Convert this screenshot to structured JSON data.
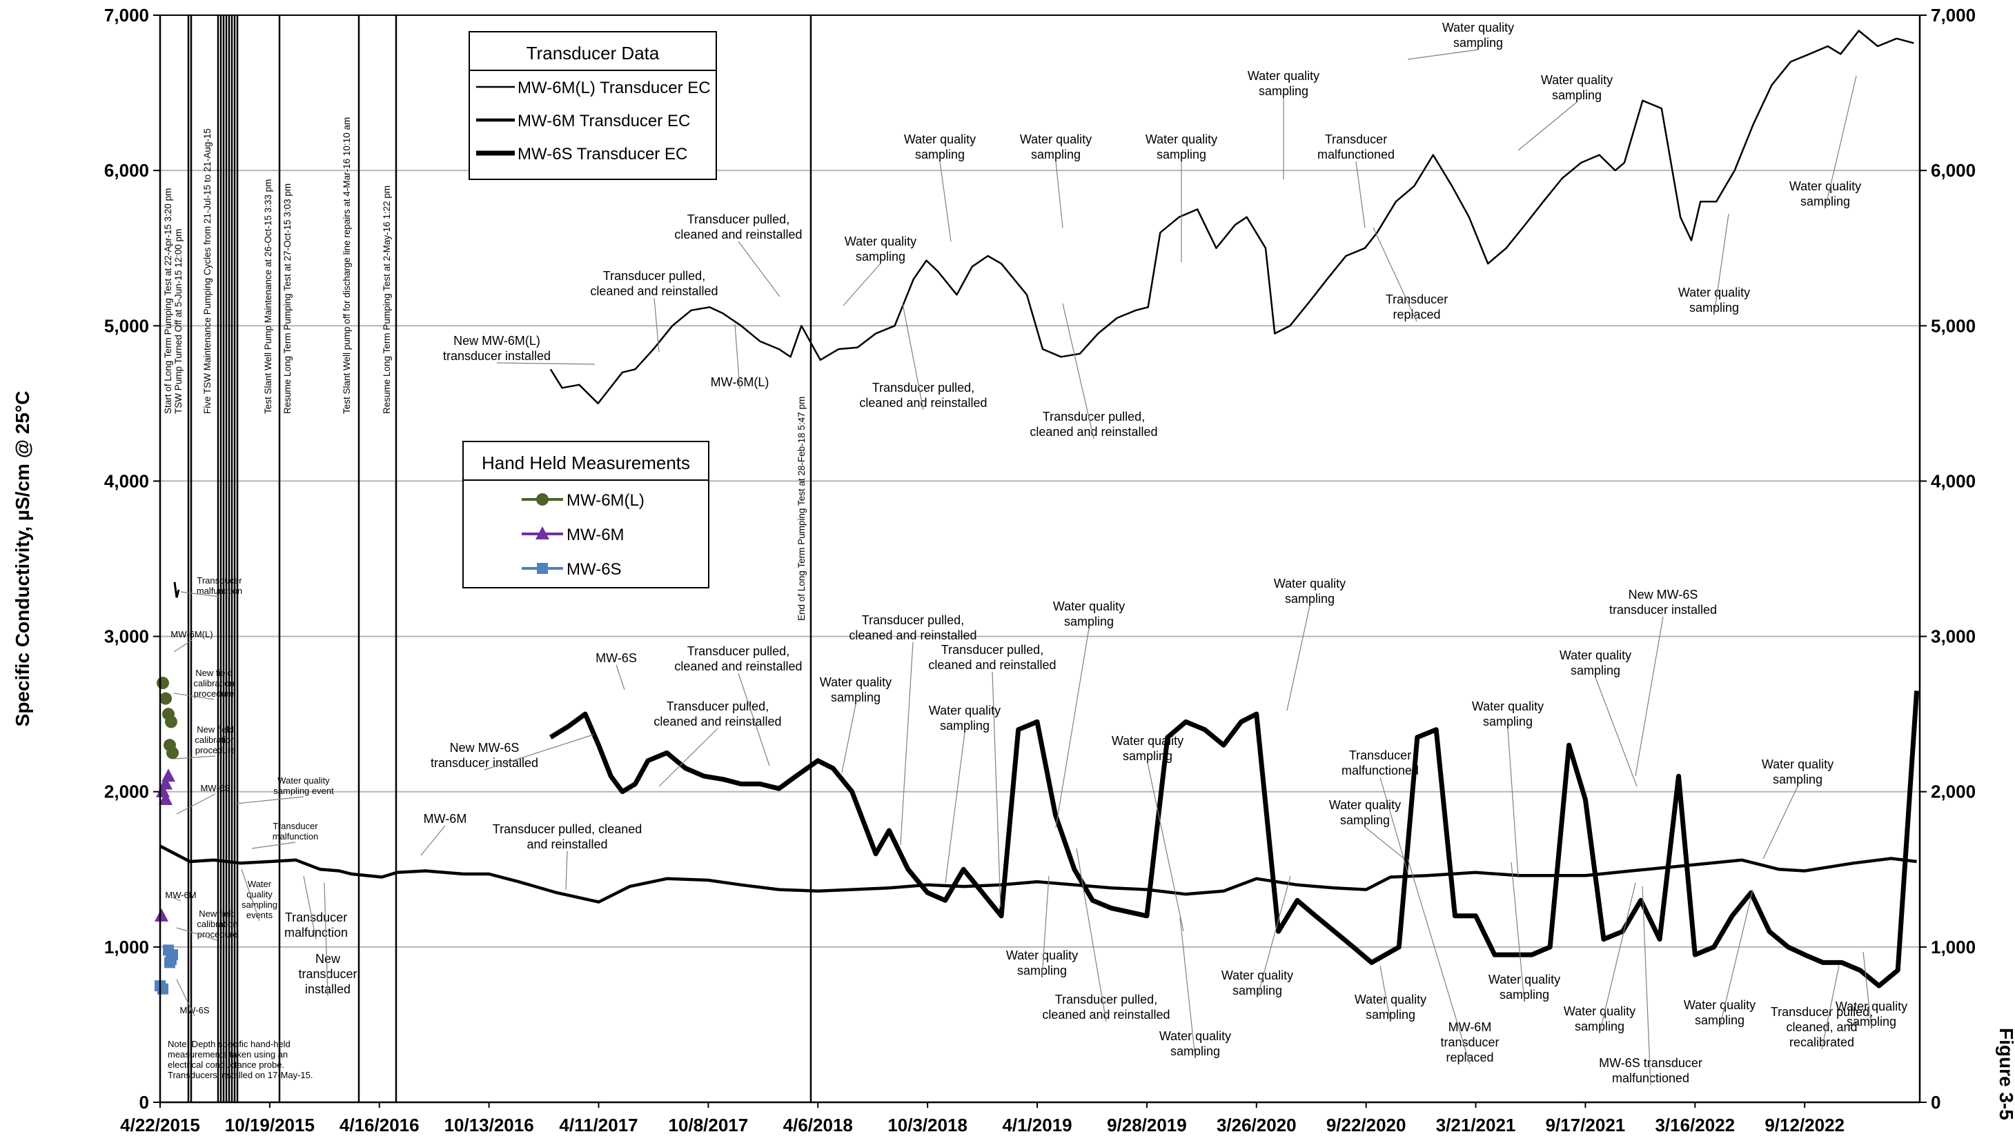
{
  "chart_data": {
    "type": "line",
    "ylabel": "Specific Conductivity, µS/cm @ 25°C",
    "ylim": [
      0,
      7000
    ],
    "yticks": [
      "0",
      "1,000",
      "2,000",
      "3,000",
      "4,000",
      "5,000",
      "6,000",
      "7,000"
    ],
    "xticks": [
      "4/22/2015",
      "10/19/2015",
      "4/16/2016",
      "10/13/2016",
      "4/11/2017",
      "10/8/2017",
      "4/6/2018",
      "10/3/2018",
      "4/1/2019",
      "9/28/2019",
      "3/26/2020",
      "9/22/2020",
      "3/21/2021",
      "9/17/2021",
      "3/16/2022",
      "9/12/2022"
    ],
    "xlim": [
      "2015-04-22",
      "2023-03-20"
    ],
    "grid": "horizontal",
    "figure_label": "Figure 3-5",
    "legend_transducer": {
      "title": "Transducer Data",
      "entries": [
        "MW-6M(L) Transducer EC",
        "MW-6M Transducer EC",
        "MW-6S Transducer EC"
      ]
    },
    "legend_handheld": {
      "title": "Hand Held Measurements",
      "entries": [
        "MW-6M(L)",
        "MW-6M",
        "MW-6S"
      ],
      "colors": [
        "#4f6228",
        "#7030a0",
        "#4f81bd"
      ]
    },
    "series": [
      {
        "name": "MW-6M(L) Transducer EC",
        "x": [
          "2017-01-22",
          "2017-02-10",
          "2017-03-10",
          "2017-04-10",
          "2017-05-20",
          "2017-06-10",
          "2017-07-10",
          "2017-08-10",
          "2017-09-10",
          "2017-10-10",
          "2017-11-01",
          "2017-12-01",
          "2018-01-01",
          "2018-02-01",
          "2018-02-20",
          "2018-03-10",
          "2018-04-10",
          "2018-05-10",
          "2018-06-10",
          "2018-07-10",
          "2018-08-10",
          "2018-09-10",
          "2018-10-01",
          "2018-10-20",
          "2018-11-20",
          "2018-12-15",
          "2019-01-10",
          "2019-02-01",
          "2019-03-15",
          "2019-04-10",
          "2019-05-10",
          "2019-06-10",
          "2019-07-10",
          "2019-08-10",
          "2019-09-10",
          "2019-09-30",
          "2019-10-20",
          "2019-11-20",
          "2019-12-20",
          "2020-01-20",
          "2020-02-20",
          "2020-03-10",
          "2020-04-10",
          "2020-04-25",
          "2020-05-20",
          "2020-06-20",
          "2020-07-20",
          "2020-08-20",
          "2020-09-20",
          "2020-10-10",
          "2020-11-10",
          "2020-12-10",
          "2021-01-10",
          "2021-02-10",
          "2021-03-10",
          "2021-04-10",
          "2021-05-10",
          "2021-06-10",
          "2021-07-10",
          "2021-08-10",
          "2021-09-10",
          "2021-10-10",
          "2021-11-05",
          "2021-11-20",
          "2021-12-20",
          "2022-01-20",
          "2022-02-20",
          "2022-03-10",
          "2022-03-25",
          "2022-04-20",
          "2022-05-20",
          "2022-06-20",
          "2022-07-20",
          "2022-08-20",
          "2022-09-20",
          "2022-10-20",
          "2022-11-10",
          "2022-12-10",
          "2023-01-10",
          "2023-02-10",
          "2023-03-10"
        ],
        "values": [
          4720,
          4600,
          4620,
          4500,
          4700,
          4720,
          4850,
          5000,
          5100,
          5120,
          5080,
          5000,
          4900,
          4850,
          4800,
          5000,
          4780,
          4850,
          4860,
          4950,
          5000,
          5300,
          5420,
          5350,
          5200,
          5380,
          5450,
          5400,
          5200,
          4850,
          4800,
          4820,
          4950,
          5050,
          5100,
          5120,
          5600,
          5700,
          5750,
          5500,
          5650,
          5700,
          5500,
          4950,
          5000,
          5150,
          5300,
          5450,
          5500,
          5600,
          5800,
          5900,
          6100,
          5900,
          5700,
          5400,
          5500,
          5650,
          5800,
          5950,
          6050,
          6100,
          6000,
          6050,
          6450,
          6400,
          5700,
          5550,
          5800,
          5800,
          6000,
          6300,
          6550,
          6700,
          6750,
          6800,
          6750,
          6900,
          6800,
          6850,
          6820
        ]
      },
      {
        "name": "MW-6M Transducer EC",
        "x": [
          "2015-04-22",
          "2015-06-10",
          "2015-07-20",
          "2015-09-01",
          "2015-10-19",
          "2015-12-01",
          "2016-01-10",
          "2016-02-10",
          "2016-03-01",
          "2016-04-20",
          "2016-05-15",
          "2016-07-01",
          "2016-09-01",
          "2016-10-13",
          "2016-12-01",
          "2017-02-01",
          "2017-04-11",
          "2017-06-01",
          "2017-08-01",
          "2017-10-08",
          "2017-12-01",
          "2018-02-01",
          "2018-04-06",
          "2018-06-01",
          "2018-08-01",
          "2018-10-03",
          "2018-12-01",
          "2019-02-01",
          "2019-04-01",
          "2019-06-01",
          "2019-08-01",
          "2019-09-28",
          "2019-12-01",
          "2020-02-01",
          "2020-03-26",
          "2020-06-01",
          "2020-08-01",
          "2020-09-22",
          "2020-11-01",
          "2021-01-01",
          "2021-03-21",
          "2021-06-01",
          "2021-09-17",
          "2021-12-01",
          "2022-03-16",
          "2022-06-01",
          "2022-08-01",
          "2022-09-12",
          "2022-12-01",
          "2023-02-01",
          "2023-03-15"
        ],
        "values": [
          1650,
          1550,
          1560,
          1540,
          1550,
          1560,
          1500,
          1490,
          1470,
          1450,
          1480,
          1490,
          1470,
          1470,
          1420,
          1350,
          1290,
          1390,
          1440,
          1430,
          1400,
          1370,
          1360,
          1370,
          1380,
          1400,
          1390,
          1400,
          1420,
          1400,
          1380,
          1370,
          1340,
          1360,
          1440,
          1400,
          1380,
          1370,
          1450,
          1460,
          1480,
          1460,
          1460,
          1490,
          1530,
          1560,
          1500,
          1490,
          1540,
          1570,
          1550
        ]
      },
      {
        "name": "MW-6S Transducer EC",
        "x": [
          "2017-01-22",
          "2017-02-20",
          "2017-03-20",
          "2017-04-11",
          "2017-05-01",
          "2017-05-20",
          "2017-06-10",
          "2017-07-01",
          "2017-08-01",
          "2017-09-01",
          "2017-10-01",
          "2017-11-01",
          "2017-12-01",
          "2018-01-01",
          "2018-02-01",
          "2018-03-01",
          "2018-04-06",
          "2018-05-01",
          "2018-06-01",
          "2018-07-10",
          "2018-08-01",
          "2018-09-01",
          "2018-10-03",
          "2018-11-01",
          "2018-12-01",
          "2019-01-01",
          "2019-02-01",
          "2019-03-01",
          "2019-04-01",
          "2019-05-01",
          "2019-06-01",
          "2019-07-01",
          "2019-08-01",
          "2019-09-28",
          "2019-11-01",
          "2019-12-01",
          "2020-01-01",
          "2020-02-01",
          "2020-03-01",
          "2020-03-26",
          "2020-05-01",
          "2020-06-01",
          "2020-07-01",
          "2020-08-01",
          "2020-09-01",
          "2020-10-01",
          "2020-11-15",
          "2020-12-15",
          "2021-01-15",
          "2021-02-15",
          "2021-03-21",
          "2021-04-21",
          "2021-05-21",
          "2021-06-21",
          "2021-07-21",
          "2021-08-21",
          "2021-09-17",
          "2021-10-17",
          "2021-11-17",
          "2021-12-17",
          "2022-01-17",
          "2022-02-17",
          "2022-03-16",
          "2022-04-16",
          "2022-05-16",
          "2022-06-16",
          "2022-07-16",
          "2022-08-16",
          "2022-09-12",
          "2022-10-12",
          "2022-11-12",
          "2022-12-12",
          "2023-01-12",
          "2023-02-12",
          "2023-03-15"
        ],
        "values": [
          2350,
          2420,
          2500,
          2300,
          2100,
          2000,
          2050,
          2200,
          2250,
          2150,
          2100,
          2080,
          2050,
          2050,
          2020,
          2100,
          2200,
          2150,
          2000,
          1600,
          1750,
          1500,
          1350,
          1300,
          1500,
          1350,
          1200,
          2400,
          2450,
          1850,
          1500,
          1300,
          1250,
          1200,
          2350,
          2450,
          2400,
          2300,
          2450,
          2500,
          1100,
          1300,
          1200,
          1100,
          1000,
          900,
          1000,
          2350,
          2400,
          1200,
          1200,
          950,
          950,
          950,
          1000,
          2300,
          1950,
          1050,
          1100,
          1300,
          1050,
          2100,
          950,
          1000,
          1200,
          1350,
          1100,
          1000,
          950,
          900,
          900,
          850,
          750,
          850,
          2650
        ]
      }
    ],
    "handheld": {
      "MW-6M(L)": [
        2700,
        2600,
        2500,
        2450,
        2300,
        2250
      ],
      "MW-6M": [
        2100,
        2050,
        2000,
        1950,
        1200
      ],
      "MW-6S": [
        980,
        950,
        920,
        900,
        750,
        730
      ]
    },
    "vertical_events": [
      "Start of Long Term Pumping Test at 22-Apr-15 3:20 pm",
      "TSW Pump Turned Off at 5-Jun-15 12:00 pm",
      "Five TSW Maintenance Pumping Cycles from 21-Jul-15 to 21-Aug-15",
      "Test Slant Well Pump Maintenance at 26-Oct-15 3:33 pm",
      "Resume Long Term Pumping Test at 27-Oct-15 3:03 pm",
      "Test Slant Well pump off for discharge line repairs at 4-Mar-16 10:10 am",
      "Resume Long Term Pumping Test at 2-May-16 1:22 pm",
      "End of Long Term Pumping Test at 28-Feb-18 5:47 pm"
    ],
    "annotations": {
      "new_mw6ml": [
        "New MW-6M(L)",
        "transducer installed"
      ],
      "pulled_1": [
        "Transducer pulled,",
        "cleaned and reinstalled"
      ],
      "pulled_2": [
        "Transducer pulled,",
        "cleaned and reinstalled"
      ],
      "label_mw6ml": "MW-6M(L)",
      "wq_1": [
        "Water quality",
        "sampling"
      ],
      "wq_2": [
        "Water quality",
        "sampling"
      ],
      "wq_3": [
        "Water quality",
        "sampling"
      ],
      "wq_4": [
        "Water quality",
        "sampling"
      ],
      "wq_5": [
        "Water quality",
        "sampling"
      ],
      "wq_6": [
        "Water quality",
        "sampling"
      ],
      "wq_7": [
        "Water quality",
        "sampling"
      ],
      "wq_8": [
        "Water quality",
        "sampling"
      ],
      "wq_9": [
        "Water quality",
        "sampling"
      ],
      "pulled_3": [
        "Transducer pulled,",
        "cleaned and reinstalled"
      ],
      "pulled_4": [
        "Transducer pulled,",
        "cleaned and reinstalled"
      ],
      "malf_1": [
        "Transducer",
        "malfunctioned"
      ],
      "replaced_1": [
        "Transducer",
        "replaced"
      ],
      "label_mw6s": "MW-6S",
      "new_mw6s": [
        "New MW-6S",
        "transducer installed"
      ],
      "pulled_5": [
        "Transducer pulled,",
        "cleaned and reinstalled"
      ],
      "pulled_6": [
        "Transducer pulled,",
        "cleaned and reinstalled"
      ],
      "label_mw6m": "MW-6M",
      "pulled_7": [
        "Transducer pulled, cleaned",
        "and reinstalled"
      ],
      "wq_10": [
        "Water quality",
        "sampling"
      ],
      "pulled_8": [
        "Transducer pulled,",
        "cleaned and reinstalled"
      ],
      "pulled_9": [
        "Transducer pulled,",
        "cleaned and reinstalled"
      ],
      "wq_11": [
        "Water quality",
        "sampling"
      ],
      "wq_12": [
        "Water quality",
        "sampling"
      ],
      "wq_13": [
        "Water quality",
        "sampling"
      ],
      "wq_14": [
        "Water quality",
        "sampling"
      ],
      "malf_2": [
        "Transducer",
        "malfunctioned"
      ],
      "wq_15": [
        "Water quality",
        "sampling"
      ],
      "wq_16": [
        "Water quality",
        "sampling"
      ],
      "new_mw6s_2": [
        "New MW-6S",
        "transducer installed"
      ],
      "wq_17": [
        "Water quality",
        "sampling"
      ],
      "wq_18": [
        "Water quality",
        "sampling"
      ],
      "wq_19": [
        "Water quality",
        "sampling"
      ],
      "pulled_10": [
        "Transducer pulled,",
        "cleaned and reinstalled"
      ],
      "wq_20": [
        "Water quality",
        "sampling"
      ],
      "wq_21": [
        "Water quality",
        "sampling"
      ],
      "wq_22": [
        "Water quality",
        "sampling"
      ],
      "wq_23": [
        "Water quality",
        "sampling"
      ],
      "wq_24": [
        "Water quality",
        "sampling"
      ],
      "replaced_2": [
        "MW-6M",
        "transducer",
        "replaced"
      ],
      "wq_25": [
        "Water quality",
        "sampling"
      ],
      "wq_26": [
        "Water quality",
        "sampling"
      ],
      "malf_3": [
        "MW-6S transducer",
        "malfunctioned"
      ],
      "wq_27": [
        "Water quality",
        "sampling"
      ],
      "recal": [
        "Transducer pulled,",
        "cleaned, and",
        "recalibrated"
      ],
      "wq_28": [
        "Water quality",
        "sampling"
      ],
      "tr_malf_left": [
        "Transducer",
        "malfunction"
      ],
      "label_mw6ml_left": "MW-6M(L)",
      "calib_1": [
        "New field",
        "calibration",
        "procedure"
      ],
      "calib_2": [
        "New field",
        "calibration",
        "procedure"
      ],
      "label_mw6s_left": "MW-6S",
      "wq_event_left": [
        "Water quality",
        "sampling event"
      ],
      "tr_malf_left2": [
        "Transducer",
        "malfunction"
      ],
      "label_mw6m_left": "MW-6M",
      "calib_3": [
        "New field",
        "calibration",
        "procedure"
      ],
      "wq_events_left": [
        "Water",
        "quality",
        "sampling",
        "events"
      ],
      "tr_malf_left3": [
        "Transducer",
        "malfunction"
      ],
      "new_tr_left": [
        "New",
        "transducer",
        "installed"
      ],
      "label_mw6s_left2": "MW-6S",
      "note": [
        "Note: Depth specific hand-held",
        "measurements taken using an",
        "electrical conductance probe.",
        "Transducers installed on 17-May-15."
      ]
    }
  }
}
